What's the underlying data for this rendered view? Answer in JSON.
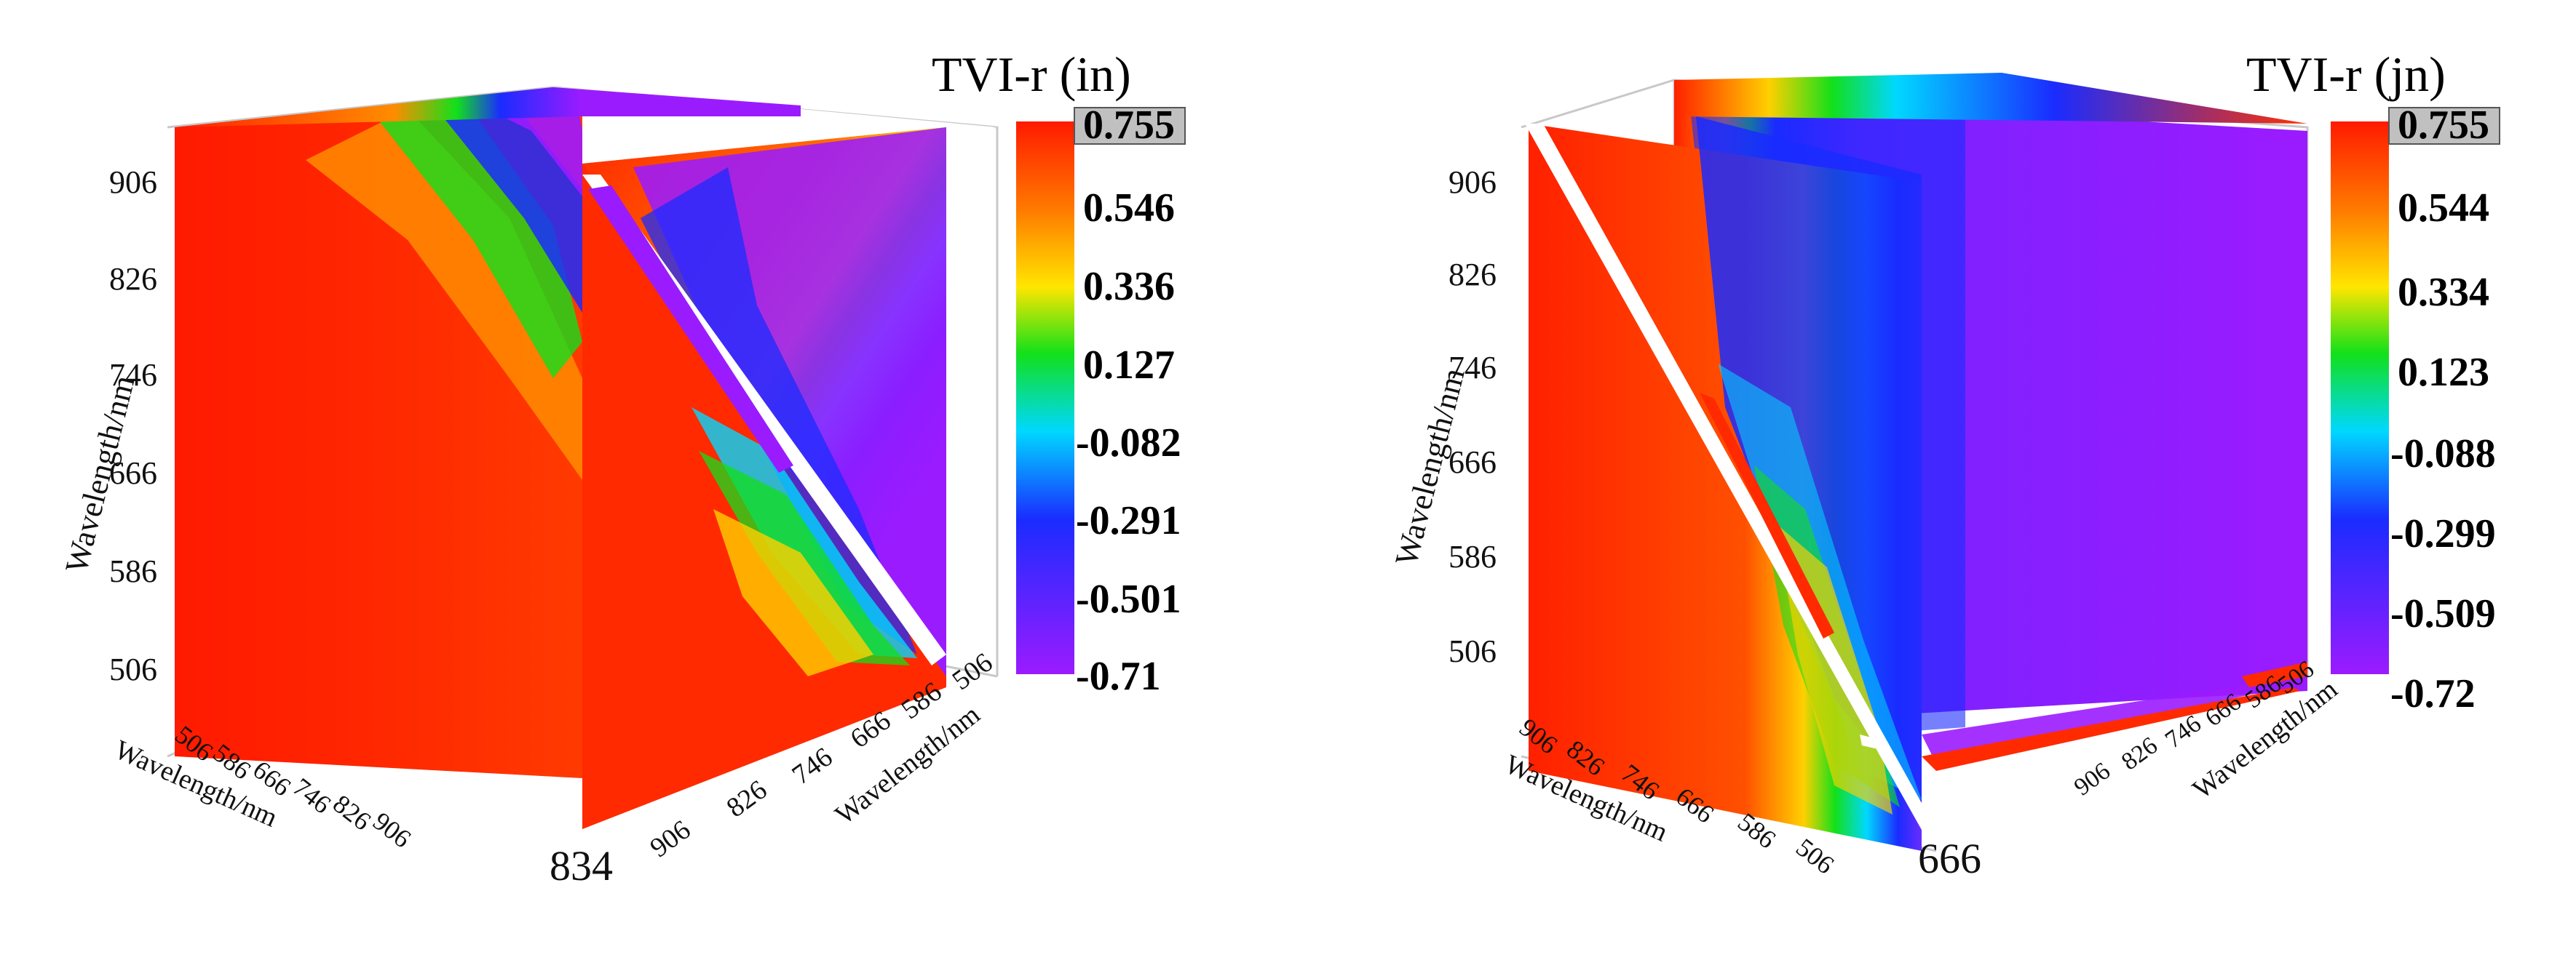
{
  "chart_data": [
    {
      "type": "heatmap",
      "variant": "3d-slice-cube",
      "title": "TVI-r (in)",
      "colorbar": {
        "title": "TVI-r (in)",
        "ticks": [
          "0.755",
          "0.546",
          "0.336",
          "0.127",
          "-0.082",
          "-0.291",
          "-0.501",
          "-0.71"
        ],
        "max_highlighted": true,
        "range": [
          -0.71,
          0.755
        ]
      },
      "vertical_axis": {
        "label": "Wavelength/nm",
        "ticks": [
          "906",
          "826",
          "746",
          "666",
          "586",
          "506"
        ]
      },
      "front_left_axis": {
        "label": "Wavelength/nm",
        "ticks": [
          "506",
          "586",
          "666",
          "746",
          "826",
          "906"
        ]
      },
      "front_right_axis": {
        "label": "Wavelength/nm",
        "ticks": [
          "906",
          "826",
          "746",
          "666",
          "586",
          "506"
        ]
      },
      "slice_label": "834"
    },
    {
      "type": "heatmap",
      "variant": "3d-slice-cube",
      "title": "TVI-r (jn)",
      "colorbar": {
        "title": "TVI-r (jn)",
        "ticks": [
          "0.755",
          "0.544",
          "0.334",
          "0.123",
          "-0.088",
          "-0.299",
          "-0.509",
          "-0.72"
        ],
        "max_highlighted": true,
        "range": [
          -0.72,
          0.755
        ]
      },
      "vertical_axis": {
        "label": "Wavelength/nm",
        "ticks": [
          "906",
          "826",
          "746",
          "666",
          "586",
          "506"
        ]
      },
      "front_left_axis": {
        "label": "Wavelength/nm",
        "ticks": [
          "906",
          "826",
          "746",
          "666",
          "586",
          "506"
        ]
      },
      "front_right_axis": {
        "label": "Wavelength/nm",
        "ticks": [
          "906",
          "826",
          "746",
          "666",
          "586",
          "506"
        ]
      },
      "slice_label": "666"
    }
  ],
  "colors": {
    "red": "#ff1a00",
    "orange": "#ff8c00",
    "yellow": "#ffe600",
    "green": "#12e01a",
    "cyan": "#00d8ff",
    "blue": "#1a2cff",
    "violet": "#9b1bff"
  }
}
